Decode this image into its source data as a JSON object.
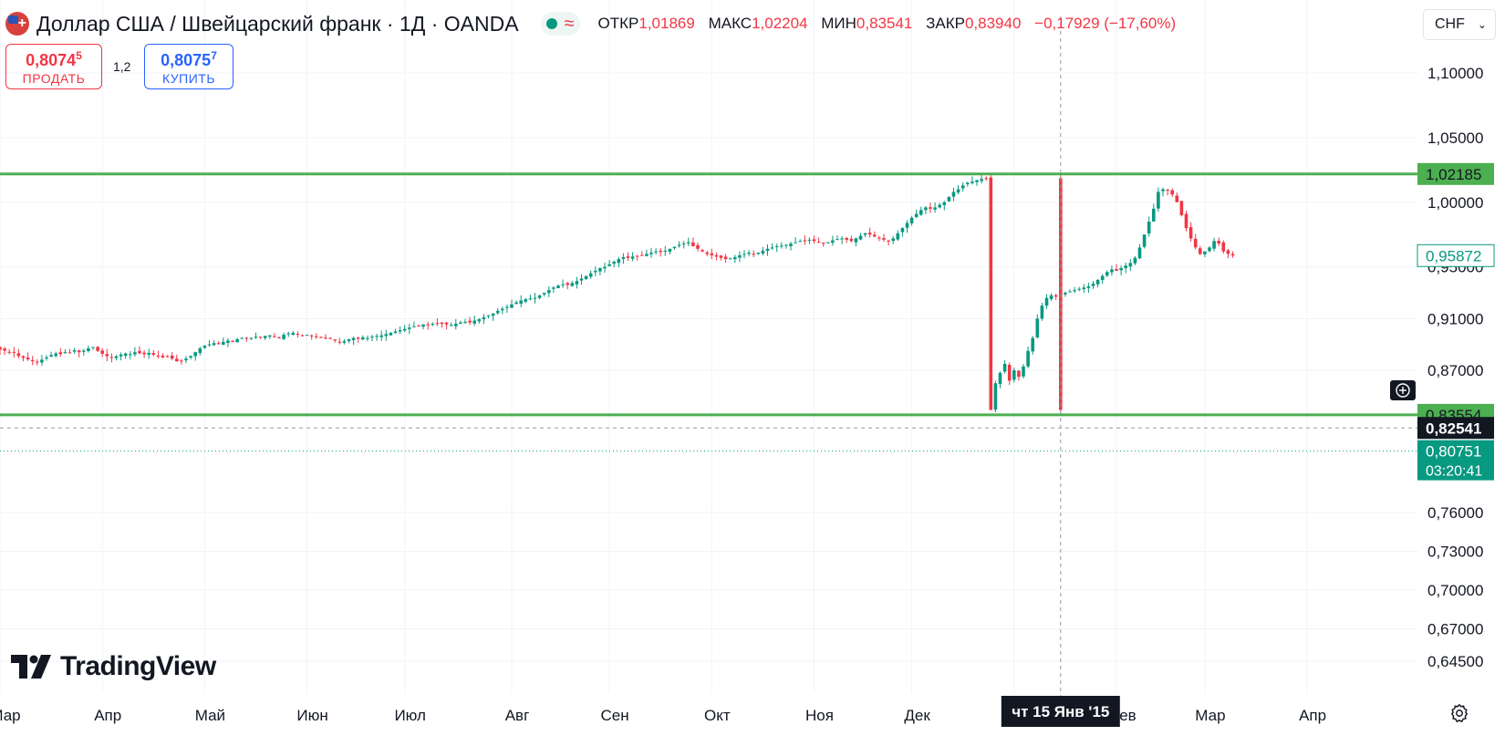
{
  "header": {
    "title": "Доллар США / Швейцарский франк · 1Д · OANDA",
    "approx_icon": "≈",
    "ohlc": [
      {
        "label": "ОТКР",
        "value": "1,01869"
      },
      {
        "label": "МАКС",
        "value": "1,02204"
      },
      {
        "label": "МИН",
        "value": "0,83541"
      },
      {
        "label": "ЗАКР",
        "value": "0,83940"
      }
    ],
    "change": "−0,17929 (−17,60%)"
  },
  "trade": {
    "sell_price": "0,8074",
    "sell_price_sup": "5",
    "sell_label": "ПРОДАТЬ",
    "spread": "1,2",
    "buy_price": "0,8075",
    "buy_price_sup": "7",
    "buy_label": "КУПИТЬ"
  },
  "currency_select": {
    "value": "CHF"
  },
  "logo": {
    "text": "TradingView",
    "icon": "tradingview-logo-icon"
  },
  "colors": {
    "up": "#089981",
    "down": "#f23645",
    "hline": "#4caf50",
    "axis_text": "#131722"
  },
  "chart_data": {
    "type": "candlestick",
    "symbol": "USDCHF",
    "interval": "1D",
    "y_axis": {
      "min": 0.63,
      "max": 1.12,
      "ticks": [
        1.1,
        1.05,
        1.0,
        0.95,
        0.91,
        0.87,
        0.76,
        0.73,
        0.7,
        0.67,
        0.645
      ],
      "tick_labels": [
        "1,10000",
        "1,05000",
        "1,00000",
        "0,95000",
        "0,91000",
        "0,87000",
        "0,76000",
        "0,73000",
        "0,70000",
        "0,67000",
        "0,64500"
      ]
    },
    "x_axis": {
      "labels": [
        "Мар",
        "Апр",
        "Май",
        "Июн",
        "Июл",
        "Авг",
        "Сен",
        "Окт",
        "Ноя",
        "Дек",
        "2015",
        "Фев",
        "Мар",
        "Апр"
      ],
      "label_index": [
        0,
        22,
        44,
        66,
        87,
        110,
        131,
        153,
        175,
        196,
        218,
        240,
        259,
        281
      ]
    },
    "horizontal_lines": [
      {
        "value": 1.02185,
        "label": "1,02185"
      },
      {
        "value": 0.83554,
        "label": "0,83554"
      }
    ],
    "price_labels": [
      {
        "value": 0.95872,
        "label": "0,95872",
        "style": "outline"
      },
      {
        "value": 0.82541,
        "label": "0,82541",
        "style": "crosshair"
      },
      {
        "value": 0.80751,
        "label": "0,80751",
        "sub": "03:20:41",
        "style": "current"
      }
    ],
    "crosshair": {
      "index": 228,
      "date_label": "чт 15 Янв '15",
      "value": 0.82541
    },
    "closes": [
      0.886,
      0.8852,
      0.8841,
      0.8835,
      0.881,
      0.8796,
      0.8785,
      0.877,
      0.876,
      0.8782,
      0.88,
      0.8818,
      0.883,
      0.8825,
      0.884,
      0.8836,
      0.8855,
      0.884,
      0.8852,
      0.887,
      0.888,
      0.885,
      0.8828,
      0.881,
      0.8798,
      0.8808,
      0.8822,
      0.883,
      0.8825,
      0.884,
      0.8832,
      0.8825,
      0.8835,
      0.882,
      0.8812,
      0.88,
      0.8805,
      0.879,
      0.877,
      0.8775,
      0.879,
      0.881,
      0.884,
      0.887,
      0.889,
      0.89,
      0.891,
      0.8905,
      0.892,
      0.893,
      0.8925,
      0.894,
      0.895,
      0.8945,
      0.895,
      0.896,
      0.8955,
      0.8965,
      0.897,
      0.896,
      0.895,
      0.8975,
      0.8985,
      0.899,
      0.898,
      0.897,
      0.8975,
      0.8965,
      0.896,
      0.8955,
      0.895,
      0.8945,
      0.893,
      0.892,
      0.8925,
      0.894,
      0.895,
      0.8945,
      0.8955,
      0.895,
      0.896,
      0.8965,
      0.897,
      0.898,
      0.899,
      0.9,
      0.901,
      0.902,
      0.903,
      0.904,
      0.9045,
      0.9055,
      0.905,
      0.906,
      0.9065,
      0.906,
      0.9055,
      0.905,
      0.906,
      0.907,
      0.9075,
      0.907,
      0.9085,
      0.9095,
      0.911,
      0.9125,
      0.914,
      0.916,
      0.9175,
      0.919,
      0.921,
      0.9225,
      0.924,
      0.925,
      0.9255,
      0.926,
      0.928,
      0.93,
      0.932,
      0.934,
      0.9355,
      0.9365,
      0.936,
      0.9375,
      0.939,
      0.941,
      0.943,
      0.945,
      0.947,
      0.949,
      0.95,
      0.952,
      0.954,
      0.956,
      0.9575,
      0.957,
      0.958,
      0.9585,
      0.959,
      0.96,
      0.961,
      0.962,
      0.9615,
      0.9625,
      0.964,
      0.9655,
      0.967,
      0.968,
      0.969,
      0.966,
      0.964,
      0.962,
      0.96,
      0.959,
      0.958,
      0.957,
      0.956,
      0.9565,
      0.9575,
      0.959,
      0.96,
      0.961,
      0.96,
      0.961,
      0.9625,
      0.964,
      0.965,
      0.966,
      0.9665,
      0.967,
      0.968,
      0.969,
      0.97,
      0.9705,
      0.971,
      0.97,
      0.969,
      0.968,
      0.969,
      0.9705,
      0.9715,
      0.972,
      0.971,
      0.97,
      0.972,
      0.974,
      0.976,
      0.975,
      0.9735,
      0.972,
      0.971,
      0.97,
      0.972,
      0.976,
      0.98,
      0.984,
      0.988,
      0.991,
      0.994,
      0.996,
      0.995,
      0.996,
      0.998,
      1.0,
      1.004,
      1.008,
      1.01,
      1.013,
      1.015,
      1.016,
      1.017,
      1.018,
      1.0186,
      0.8394,
      0.86,
      0.868,
      0.875,
      0.862,
      0.87,
      0.865,
      0.873,
      0.885,
      0.895,
      0.91,
      0.92,
      0.926,
      0.928,
      0.927,
      0.929,
      0.93,
      0.931,
      0.932,
      0.933,
      0.934,
      0.935,
      0.937,
      0.94,
      0.943,
      0.946,
      0.948,
      0.947,
      0.949,
      0.951,
      0.953,
      0.957,
      0.965,
      0.975,
      0.985,
      0.995,
      1.008,
      1.01,
      1.009,
      1.006,
      1.0,
      0.99,
      0.98,
      0.972,
      0.965,
      0.96,
      0.962,
      0.965,
      0.97,
      0.968,
      0.962,
      0.96,
      0.9588
    ],
    "crash": {
      "index": 228,
      "open": 1.0186,
      "high": 1.022,
      "low": 0.8354,
      "close": 0.8394
    },
    "current_price": 0.80751
  }
}
